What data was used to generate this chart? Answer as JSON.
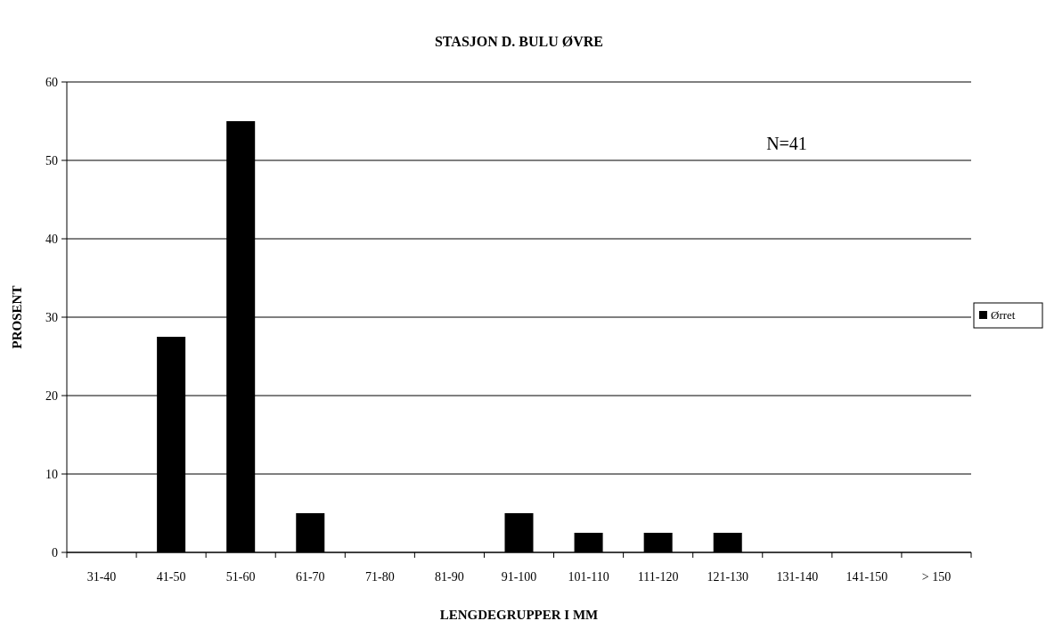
{
  "chart_data": {
    "type": "bar",
    "title": "STASJON D. BULU ØVRE",
    "xlabel": "LENGDEGRUPPER I MM",
    "ylabel": "PROSENT",
    "categories": [
      "31-40",
      "41-50",
      "51-60",
      "61-70",
      "71-80",
      "81-90",
      "91-100",
      "101-110",
      "111-120",
      "121-130",
      "131-140",
      "141-150",
      "> 150"
    ],
    "series": [
      {
        "name": "Ørret",
        "color": "#000000",
        "values": [
          0,
          27.5,
          55,
          5,
          0,
          0,
          5,
          2.5,
          2.5,
          2.5,
          0,
          0,
          0
        ]
      }
    ],
    "ylim": [
      0,
      60
    ],
    "yticks": [
      0,
      10,
      20,
      30,
      40,
      50,
      60
    ],
    "grid": "y",
    "legend": "right",
    "annotations": [
      "N=41"
    ]
  }
}
